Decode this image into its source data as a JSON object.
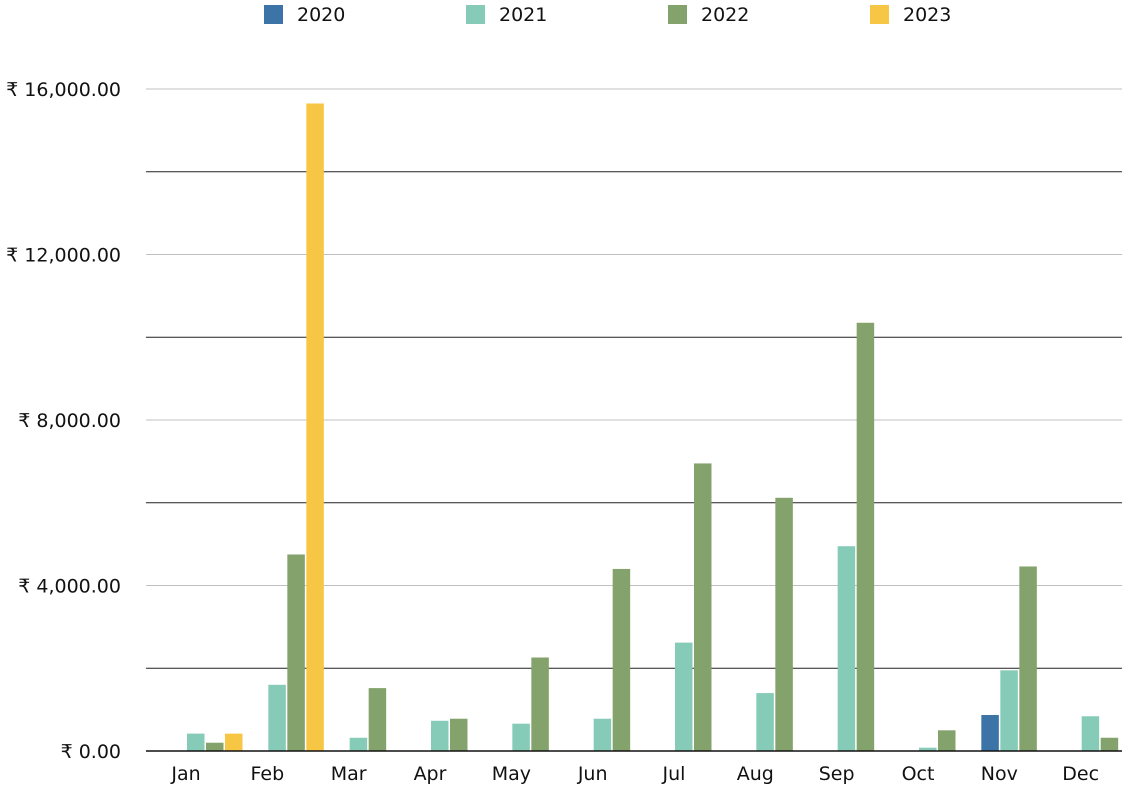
{
  "chart_data": {
    "type": "bar",
    "title": "",
    "xlabel": "",
    "ylabel": "",
    "ylim": [
      0,
      16000
    ],
    "grid": true,
    "legend_position": "top",
    "y_ticks": [
      "₹ 0.00",
      "₹ 4,000.00",
      "₹ 8,000.00",
      "₹ 12,000.00",
      "₹ 16,000.00"
    ],
    "y_tick_values": [
      0,
      4000,
      8000,
      12000,
      16000
    ],
    "categories": [
      "Jan",
      "Feb",
      "Mar",
      "Apr",
      "May",
      "Jun",
      "Jul",
      "Aug",
      "Sep",
      "Oct",
      "Nov",
      "Dec"
    ],
    "series": [
      {
        "name": "2020",
        "color": "#3d74a8",
        "values": [
          0,
          0,
          0,
          0,
          0,
          0,
          0,
          0,
          0,
          0,
          870,
          0
        ]
      },
      {
        "name": "2021",
        "color": "#86cbb8",
        "values": [
          420,
          1600,
          320,
          730,
          660,
          780,
          2620,
          1400,
          4950,
          80,
          1950,
          840
        ]
      },
      {
        "name": "2022",
        "color": "#84a26b",
        "values": [
          200,
          4750,
          1520,
          780,
          2260,
          4400,
          6950,
          6120,
          10350,
          500,
          4460,
          320
        ]
      },
      {
        "name": "2023",
        "color": "#f7c644",
        "values": [
          420,
          15650,
          0,
          0,
          0,
          0,
          0,
          0,
          0,
          0,
          0,
          0
        ]
      }
    ]
  }
}
